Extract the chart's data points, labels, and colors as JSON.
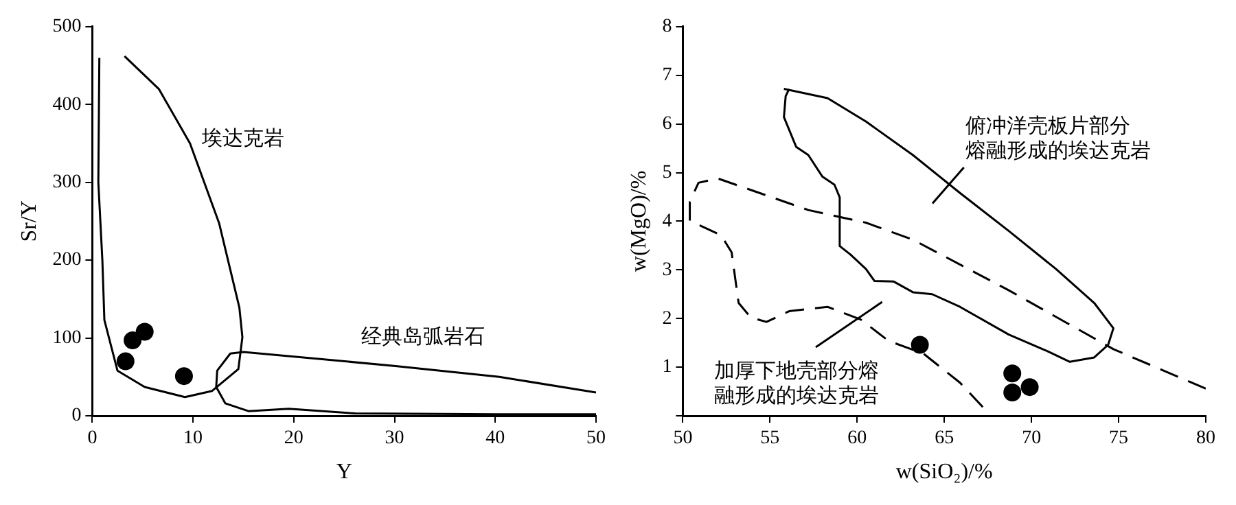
{
  "chart_data": [
    {
      "type": "scatter",
      "xlabel": "Y",
      "ylabel": "Sr/Y",
      "xlim": [
        0,
        50
      ],
      "ylim": [
        0,
        500
      ],
      "xticks": [
        0,
        10,
        20,
        30,
        40,
        50
      ],
      "yticks": [
        0,
        100,
        200,
        300,
        400,
        500
      ],
      "grid": false,
      "legend": false,
      "marker": "circle",
      "annotations": [
        "埃达克岩",
        "经典岛弧岩石"
      ],
      "series": [
        {
          "color": "#000000",
          "x": [
            3.3,
            4,
            5.2,
            9.1
          ],
          "values": [
            70,
            97,
            108,
            51
          ]
        },
        {
          "type": "line",
          "color": "#000000",
          "marker": "none",
          "line_style": "solid",
          "x": [
            0.7,
            0.6,
            1,
            1.2,
            2.5,
            5.2,
            9.2,
            11.9,
            14.5,
            14.9,
            14.6,
            12.6,
            9.7,
            6.6,
            3.2
          ],
          "values": [
            460,
            300,
            200,
            123,
            58,
            37,
            24,
            32,
            60,
            101,
            139,
            247,
            350,
            420,
            462
          ]
        },
        {
          "type": "line",
          "color": "#000000",
          "marker": "none",
          "line_style": "solid",
          "x": [
            50,
            40.4,
            30.1,
            15,
            13.7,
            12.4,
            12.3,
            13.2,
            15.5,
            19.5,
            26.1,
            40,
            50
          ],
          "values": [
            30,
            50,
            64,
            82,
            80,
            58,
            37,
            16,
            6,
            9,
            3,
            2,
            2
          ]
        }
      ]
    },
    {
      "type": "scatter",
      "xlabel": "w(SiO₂)/%",
      "ylabel": "w(MgO)/%",
      "xlim": [
        50,
        80
      ],
      "ylim": [
        0,
        8
      ],
      "xticks": [
        50,
        55,
        60,
        65,
        70,
        75,
        80
      ],
      "yticks": [
        {
          "value": 0,
          "label": null
        },
        1,
        2,
        3,
        4,
        5,
        6,
        7,
        8
      ],
      "grid": false,
      "legend": false,
      "marker": "circle",
      "annotations": [
        "俯冲洋壳板片部分熔融形成的埃达克岩",
        "加厚下地壳部分熔融形成的埃达克岩"
      ],
      "series": [
        {
          "color": "#000000",
          "x": [
            63.6,
            68.9,
            68.9,
            69.9
          ],
          "values": [
            1.46,
            0.87,
            0.48,
            0.59
          ]
        },
        {
          "type": "line",
          "color": "#000000",
          "marker": "none",
          "line_style": "solid",
          "x": [
            55.8,
            58.3,
            60.5,
            63.2,
            65.9,
            68.7,
            71.4,
            73.6,
            74.7,
            74.4,
            73.6,
            72.2,
            70.9,
            68.7,
            65.9,
            64.3,
            63.2,
            62.1,
            61,
            60.5,
            59.6,
            59,
            59,
            58.7,
            58,
            57.2,
            56.5,
            55.8,
            55.9,
            56.1
          ],
          "values": [
            6.72,
            6.53,
            6.05,
            5.36,
            4.58,
            3.8,
            3.02,
            2.32,
            1.8,
            1.46,
            1.2,
            1.11,
            1.33,
            1.67,
            2.24,
            2.5,
            2.54,
            2.76,
            2.77,
            3.02,
            3.32,
            3.49,
            4.49,
            4.75,
            4.92,
            5.36,
            5.53,
            6.14,
            6.57,
            6.72
          ]
        },
        {
          "type": "line",
          "color": "#000000",
          "marker": "none",
          "line_style": "dashed",
          "x": [
            80,
            74.7,
            68.7,
            63.2,
            60.5,
            57.2,
            54.4,
            52,
            50.9,
            50.4,
            50.4,
            52.2,
            52.8,
            53.2,
            53.9,
            54.8,
            56.1,
            58.3,
            60.2,
            61.8,
            63.8,
            65.9,
            67.6
          ],
          "values": [
            0.56,
            1.37,
            2.58,
            3.62,
            3.97,
            4.23,
            4.58,
            4.88,
            4.79,
            4.4,
            4.01,
            3.71,
            3.36,
            2.32,
            2.02,
            1.93,
            2.15,
            2.24,
            1.98,
            1.54,
            1.28,
            0.68,
            0.03
          ]
        }
      ]
    }
  ]
}
